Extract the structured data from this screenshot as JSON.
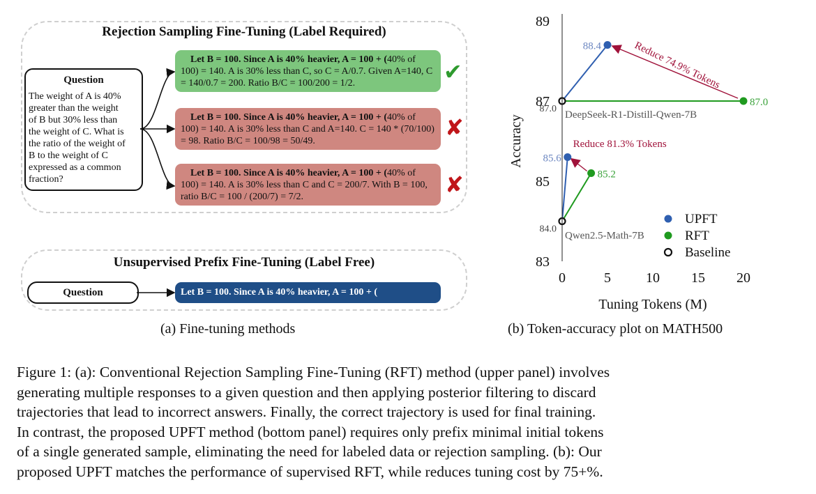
{
  "panel_a": {
    "rft_title": "Rejection Sampling Fine-Tuning (Label Required)",
    "upft_title": "Unsupervised Prefix Fine-Tuning (Label Free)",
    "question_title": "Question",
    "question_lines": [
      "The weight of A is 40%",
      "greater than the weight",
      "of B but 30% less than",
      "the weight of C. What is",
      "the ratio of the weight of",
      "B to the weight of C",
      "expressed as a common",
      " fraction?"
    ],
    "responses": [
      {
        "prefix": "Let B = 100.  Since A is 40% heavier, A = 100 + (",
        "line1_rest": "40%",
        "rest": "of 100) = 140. A is 30% less than C, so C = A/0.7.  Given A=140, C = 140/0.7 = 200. Ratio B/C = 100/200 = 1/2.",
        "verdict": "correct",
        "verdict_glyph": "✔",
        "color": "#7dc67d"
      },
      {
        "prefix": "Let B = 100.  Since A is 40% heavier, A = 100 + (",
        "line1_rest": "40%",
        "rest": "of 100) = 140. A is 30% less than C and A=140.  C = 140 * (70/100) = 98. Ratio B/C = 100/98 = 50/49.",
        "verdict": "incorrect",
        "verdict_glyph": "✘",
        "color": "#cf8780"
      },
      {
        "prefix": "Let B = 100.  Since A is 40% heavier, A = 100 + (",
        "line1_rest": "40%",
        "rest": "of 100) = 140. A is 30% less than C and C = 200/7. With B = 100, ratio B/C = 100 / (200/7) = 7/2.",
        "verdict": "incorrect",
        "verdict_glyph": "✘",
        "color": "#cf8780"
      }
    ],
    "upft_question_title": "Question",
    "upft_prefix": "Let B = 100.  Since A is 40% heavier, A = 100 + (",
    "subcaption": "(a) Fine-tuning methods"
  },
  "chart_data": {
    "type": "scatter",
    "xlabel": "Tuning Tokens (M)",
    "ylabel": "Accuracy",
    "xlim": [
      0,
      20
    ],
    "ylim": [
      83,
      89
    ],
    "xticks": [
      "0",
      "5",
      "10",
      "15",
      "20"
    ],
    "yticks": [
      "83",
      "85",
      "87",
      "89"
    ],
    "series": [
      {
        "name": "UPFT",
        "color": "#2f5fb0",
        "points": [
          {
            "x": 5.0,
            "y": 88.4,
            "label": "88.4"
          },
          {
            "x": 0.6,
            "y": 85.6,
            "label": "85.6"
          }
        ]
      },
      {
        "name": "RFT",
        "color": "#1f9a1f",
        "points": [
          {
            "x": 20.0,
            "y": 87.0,
            "label": "87.0"
          },
          {
            "x": 3.2,
            "y": 85.2,
            "label": "85.2"
          }
        ]
      },
      {
        "name": "Baseline",
        "color": "#111111",
        "points": [
          {
            "x": 0,
            "y": 87.0,
            "label": "87.0"
          },
          {
            "x": 0,
            "y": 84.0,
            "label": "84.0"
          }
        ]
      }
    ],
    "model_labels": [
      "DeepSeek-R1-Distill-Qwen-7B",
      "Qwen2.5-Math-7B"
    ],
    "annotations": [
      {
        "text": "Reduce 74.9% Tokens",
        "color": "#a0123a"
      },
      {
        "text": "Reduce 81.3% Tokens",
        "color": "#a0123a"
      }
    ],
    "legend": [
      "UPFT",
      "RFT",
      "Baseline"
    ],
    "legend_position": "bottom-right",
    "subcaption": "(b) Token-accuracy plot on MATH500"
  },
  "caption": {
    "lines": [
      "Figure 1: (a): Conventional Rejection Sampling Fine-Tuning (RFT) method (upper panel) involves",
      "generating multiple responses to a given question and then applying posterior filtering to discard",
      "trajectories that lead to incorrect answers.  Finally, the correct trajectory is used for final training.",
      "In contrast, the proposed UPFT method (bottom panel) requires only prefix minimal initial tokens",
      "of a single generated sample, eliminating the need for labeled data or rejection sampling. (b): Our",
      "proposed UPFT matches the performance of supervised RFT, while reduces tuning cost by 75+%."
    ]
  }
}
